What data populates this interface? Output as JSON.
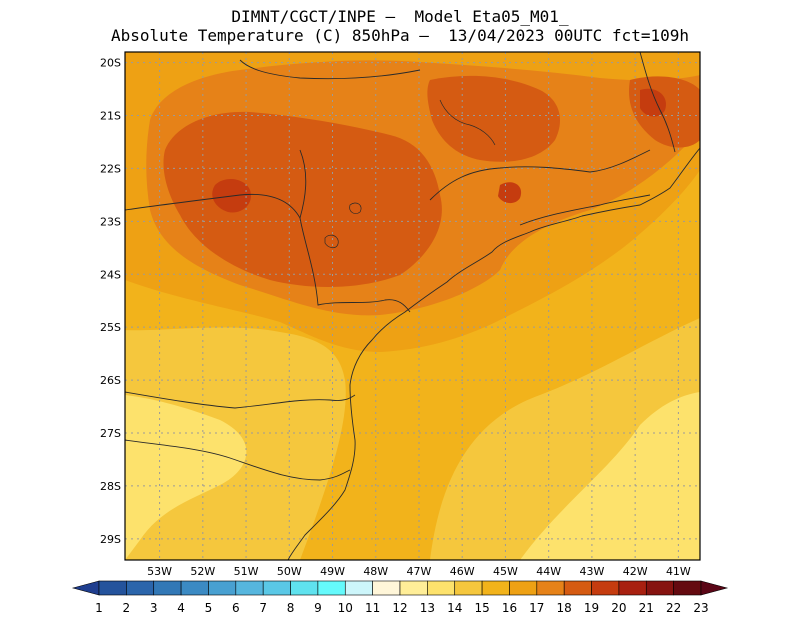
{
  "title": {
    "line1": "DIMNT/CGCT/INPE –  Model Eta05_M01_",
    "line2": "Absolute Temperature (C) 850hPa –  13/04/2023 00UTC fct=109h"
  },
  "map": {
    "lat_ticks": [
      "20S",
      "21S",
      "22S",
      "23S",
      "24S",
      "25S",
      "26S",
      "27S",
      "28S",
      "29S"
    ],
    "lon_ticks": [
      "53W",
      "52W",
      "51W",
      "50W",
      "49W",
      "48W",
      "47W",
      "46W",
      "45W",
      "44W",
      "43W",
      "42W",
      "41W"
    ],
    "lat_values": [
      -20,
      -21,
      -22,
      -23,
      -24,
      -25,
      -26,
      -27,
      -28,
      -29
    ],
    "lon_values": [
      -53,
      -52,
      -51,
      -50,
      -49,
      -48,
      -47,
      -46,
      -45,
      -44,
      -43,
      -42,
      -41
    ],
    "extent": {
      "lon_min": -53.8,
      "lon_max": -40.5,
      "lat_max": -19.8,
      "lat_min": -29.4
    },
    "field_range_c": [
      15,
      20
    ]
  },
  "colorbar": {
    "labels": [
      "1",
      "2",
      "3",
      "4",
      "5",
      "6",
      "7",
      "8",
      "9",
      "10",
      "11",
      "12",
      "13",
      "14",
      "15",
      "16",
      "17",
      "18",
      "19",
      "20",
      "21",
      "22",
      "23"
    ],
    "colors": [
      "#1f3e8f",
      "#24539c",
      "#2b65ab",
      "#3278b6",
      "#3b8ac3",
      "#48a0d1",
      "#56b6de",
      "#5ac8e6",
      "#5fe2ee",
      "#65fafc",
      "#cdf6fb",
      "#fff6d9",
      "#ffee98",
      "#fde26c",
      "#f5c73d",
      "#f2b31b",
      "#eea114",
      "#e68218",
      "#d55b12",
      "#c53c0f",
      "#a82010",
      "#861310",
      "#640a10",
      "#5a0616"
    ]
  }
}
